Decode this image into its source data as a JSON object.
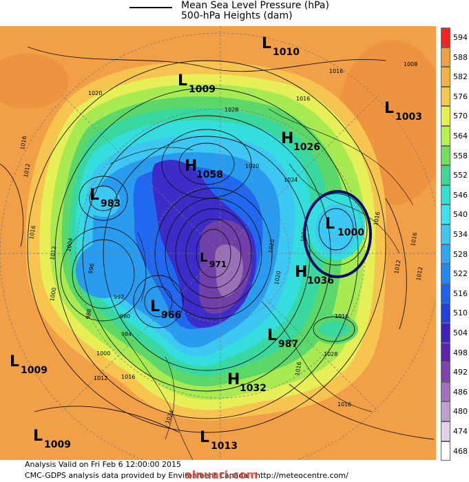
{
  "legend": {
    "line1": "Mean Sea Level Pressure (hPa)",
    "line2": "500-hPa Heights (dam)"
  },
  "colorbar": {
    "levels": [
      "594",
      "588",
      "582",
      "576",
      "570",
      "564",
      "558",
      "552",
      "546",
      "540",
      "534",
      "528",
      "522",
      "516",
      "510",
      "504",
      "498",
      "492",
      "486",
      "480",
      "474",
      "468"
    ],
    "colors": [
      "#ff2020",
      "#f0a040",
      "#f5b04a",
      "#f8c84e",
      "#e8f050",
      "#b8f050",
      "#70e060",
      "#40d890",
      "#30e0d0",
      "#40e0f0",
      "#40c8f0",
      "#30a8f0",
      "#2088f0",
      "#2060f0",
      "#2040e0",
      "#4020c0",
      "#6020b0",
      "#8040b0",
      "#a070c0",
      "#c0a0d0",
      "#e0d0e8",
      "#ffffff"
    ]
  },
  "systems": [
    {
      "letter": "L",
      "value": "1010"
    },
    {
      "letter": "L",
      "value": "1009"
    },
    {
      "letter": "L",
      "value": "1003"
    },
    {
      "letter": "H",
      "value": "1026"
    },
    {
      "letter": "H",
      "value": "1058"
    },
    {
      "letter": "L",
      "value": "983"
    },
    {
      "letter": "L",
      "value": "1000"
    },
    {
      "letter": "L",
      "value": "971"
    },
    {
      "letter": "H",
      "value": "1036"
    },
    {
      "letter": "L",
      "value": "966"
    },
    {
      "letter": "L",
      "value": "987"
    },
    {
      "letter": "L",
      "value": "1009"
    },
    {
      "letter": "H",
      "value": "1032"
    },
    {
      "letter": "L",
      "value": "1009"
    },
    {
      "letter": "L",
      "value": "1013"
    }
  ],
  "isobar_labels": [
    "1016",
    "1008",
    "1016",
    "1020",
    "1028",
    "1016",
    "1012",
    "1016",
    "1012",
    "1016",
    "1000",
    "1004",
    "996",
    "992",
    "988",
    "980",
    "984",
    "1000",
    "1012",
    "1016",
    "1020",
    "1024",
    "1020",
    "1012",
    "1016",
    "1016",
    "1012",
    "1004",
    "1016",
    "1028",
    "1020",
    "1016",
    "1024"
  ],
  "footer": {
    "line1": "Analysis Valid on Fri Feb  6 12:00:00 2015",
    "line2": "CMC-GDPS analysis data provided by Environment Canada  -  http://meteocentre.com/"
  },
  "watermark": "alnuari.com"
}
